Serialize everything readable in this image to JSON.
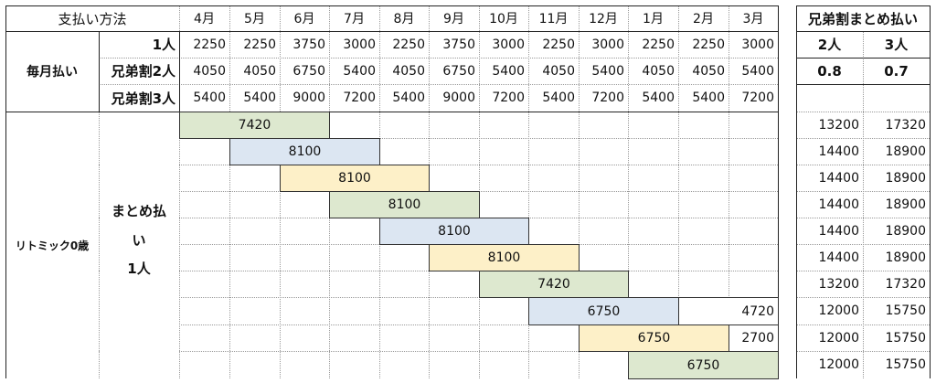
{
  "header": {
    "title": "支払い方法",
    "months": [
      "4月",
      "5月",
      "6月",
      "7月",
      "8月",
      "9月",
      "10月",
      "11月",
      "12月",
      "1月",
      "2月",
      "3月"
    ],
    "side_title": "兄弟割まとめ払い"
  },
  "monthly": {
    "group_label": "毎月払い",
    "rows": [
      {
        "label": "1人",
        "values": [
          "2250",
          "2250",
          "3750",
          "3000",
          "2250",
          "3750",
          "3000",
          "2250",
          "3000",
          "2250",
          "2250",
          "3000"
        ]
      },
      {
        "label": "兄弟割2人",
        "values": [
          "4050",
          "4050",
          "6750",
          "5400",
          "4050",
          "6750",
          "5400",
          "4050",
          "5400",
          "4050",
          "4050",
          "5400"
        ]
      },
      {
        "label": "兄弟割3人",
        "values": [
          "5400",
          "5400",
          "9000",
          "7200",
          "5400",
          "9000",
          "7200",
          "5400",
          "7200",
          "5400",
          "5400",
          "7200"
        ]
      }
    ]
  },
  "side": {
    "col1": "2人",
    "col2": "3人",
    "rate1": "0.8",
    "rate2": "0.7",
    "rows": [
      [
        "13200",
        "17320"
      ],
      [
        "14400",
        "18900"
      ],
      [
        "14400",
        "18900"
      ],
      [
        "14400",
        "18900"
      ],
      [
        "14400",
        "18900"
      ],
      [
        "14400",
        "18900"
      ],
      [
        "13200",
        "17320"
      ],
      [
        "12000",
        "15750"
      ],
      [
        "12000",
        "15750"
      ],
      [
        "12000",
        "15750"
      ]
    ]
  },
  "bulk": {
    "course_label": "リトミック0歳",
    "group_label_line1": "まとめ払",
    "group_label_line2": "い",
    "group_label_line3": "1人",
    "colors": {
      "green": "#dde8cf",
      "blue": "#dce6f2",
      "yellow": "#fdf0c8"
    },
    "bars": [
      {
        "start": 0,
        "span": 3,
        "value": "7420",
        "color": "green"
      },
      {
        "start": 1,
        "span": 3,
        "value": "8100",
        "color": "blue"
      },
      {
        "start": 2,
        "span": 3,
        "value": "8100",
        "color": "yellow"
      },
      {
        "start": 3,
        "span": 3,
        "value": "8100",
        "color": "green"
      },
      {
        "start": 4,
        "span": 3,
        "value": "8100",
        "color": "blue"
      },
      {
        "start": 5,
        "span": 3,
        "value": "8100",
        "color": "yellow"
      },
      {
        "start": 6,
        "span": 3,
        "value": "7420",
        "color": "green"
      },
      {
        "start": 7,
        "span": 3,
        "value": "6750",
        "color": "blue"
      },
      {
        "start": 8,
        "span": 3,
        "value": "6750",
        "color": "yellow"
      },
      {
        "start": 9,
        "span": 3,
        "value": "6750",
        "color": "green"
      }
    ],
    "remainders": [
      {
        "row": 7,
        "value": "4720"
      },
      {
        "row": 8,
        "value": "2700"
      }
    ]
  }
}
